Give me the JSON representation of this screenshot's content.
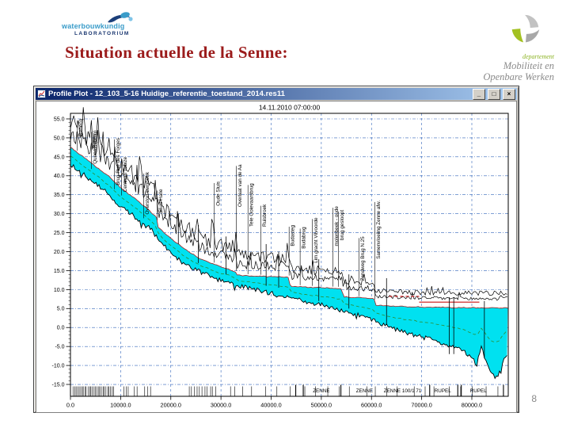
{
  "slide": {
    "title": "Situation actuelle de la Senne:",
    "page_number": "8",
    "logo_left": {
      "line1": "waterbouwkundig",
      "line2": "LABORATORIUM"
    },
    "logo_right": {
      "line1": "departement",
      "line2": "Mobiliteit en",
      "line3": "Openbare Werken"
    },
    "colors": {
      "title": "#9b1b1b",
      "accent_green": "#a3c122"
    }
  },
  "window": {
    "title": "Profile Plot - 12_103_5-16 Huidige_referentie_toestand_2014.res11",
    "controls": {
      "minimize": "_",
      "maximize": "□",
      "close": "×"
    }
  },
  "chart_data": {
    "type": "area",
    "title": "14.11.2010 07:00:00",
    "xlabel": "",
    "ylabel": "",
    "xlim": [
      0,
      87200
    ],
    "ylim": [
      -18,
      56.5
    ],
    "x_ticks": [
      0,
      10000,
      20000,
      30000,
      40000,
      50000,
      60000,
      70000,
      80000
    ],
    "y_ticks": [
      55,
      50,
      45,
      40,
      35,
      30,
      25,
      20,
      15,
      10,
      5,
      0,
      -5,
      -10,
      -15
    ],
    "grid": "dashed-blue",
    "legend": "none",
    "colors": {
      "water": "#00e1f0",
      "bed": "#000000",
      "surface_edge": "#aa2222",
      "reference": "#2e8b2e",
      "max_level": "#cc1111",
      "grid": "#3366bb"
    },
    "series": [
      {
        "name": "water-surface",
        "points": [
          [
            0,
            47.5
          ],
          [
            2000,
            45.5
          ],
          [
            4000,
            43.5
          ],
          [
            6000,
            41.5
          ],
          [
            8000,
            39.5
          ],
          [
            10000,
            36.8
          ],
          [
            12000,
            34.8
          ],
          [
            14000,
            32.8
          ],
          [
            16000,
            30.5
          ],
          [
            17200,
            29.0
          ],
          [
            17400,
            26.5
          ],
          [
            20000,
            23.5
          ],
          [
            23000,
            20.5
          ],
          [
            26000,
            18.0
          ],
          [
            29000,
            16.5
          ],
          [
            32000,
            15.2
          ],
          [
            33000,
            14.6
          ],
          [
            33300,
            13.8
          ],
          [
            36000,
            13.6
          ],
          [
            40000,
            13.4
          ],
          [
            43500,
            13.3
          ],
          [
            43800,
            10.9
          ],
          [
            48000,
            10.6
          ],
          [
            52000,
            10.4
          ],
          [
            54100,
            10.3
          ],
          [
            54400,
            8.1
          ],
          [
            57000,
            7.9
          ],
          [
            60500,
            7.6
          ],
          [
            60800,
            5.9
          ],
          [
            65000,
            5.6
          ],
          [
            70000,
            5.4
          ],
          [
            75000,
            5.3
          ],
          [
            80000,
            5.2
          ],
          [
            87200,
            5.2
          ]
        ]
      },
      {
        "name": "bed-level",
        "points": [
          [
            0,
            43.0
          ],
          [
            2000,
            41.0
          ],
          [
            4000,
            39.0
          ],
          [
            6000,
            37.0
          ],
          [
            8000,
            34.5
          ],
          [
            10000,
            32.0
          ],
          [
            12000,
            30.0
          ],
          [
            14000,
            28.0
          ],
          [
            16000,
            26.0
          ],
          [
            17400,
            23.5
          ],
          [
            20000,
            19.5
          ],
          [
            23000,
            16.5
          ],
          [
            26000,
            14.5
          ],
          [
            29000,
            13.0
          ],
          [
            32000,
            12.0
          ],
          [
            33300,
            11.0
          ],
          [
            36000,
            10.3
          ],
          [
            40000,
            9.0
          ],
          [
            43800,
            8.0
          ],
          [
            46000,
            7.0
          ],
          [
            50000,
            6.0
          ],
          [
            54400,
            4.5
          ],
          [
            58000,
            3.0
          ],
          [
            62000,
            1.0
          ],
          [
            66000,
            -1.0
          ],
          [
            70000,
            -2.5
          ],
          [
            74000,
            -4.0
          ],
          [
            78000,
            -6.0
          ],
          [
            80000,
            -8.0
          ],
          [
            81000,
            -10.0
          ],
          [
            81800,
            -5.0
          ],
          [
            82600,
            -8.0
          ],
          [
            83600,
            -12.0
          ],
          [
            84800,
            -13.0
          ],
          [
            85800,
            -11.5
          ],
          [
            86400,
            -8.0
          ],
          [
            87200,
            -7.0
          ]
        ]
      },
      {
        "name": "bank-near-offset",
        "points": [
          [
            0,
            3.5
          ],
          [
            20000,
            3.5
          ],
          [
            40000,
            2.8
          ],
          [
            60000,
            2.4
          ],
          [
            87200,
            2.4
          ]
        ]
      },
      {
        "name": "bank-far-offset",
        "points": [
          [
            0,
            6.5
          ],
          [
            20000,
            6.0
          ],
          [
            44000,
            4.8
          ],
          [
            62000,
            3.8
          ],
          [
            87200,
            3.8
          ]
        ]
      },
      {
        "name": "jitter-amplitude",
        "points": [
          [
            0,
            2.2
          ],
          [
            20000,
            1.6
          ],
          [
            44000,
            1.1
          ],
          [
            62000,
            0.5
          ],
          [
            87200,
            0.5
          ]
        ]
      },
      {
        "name": "reference-level-green",
        "derive": "midline of water-surface and bed-level"
      }
    ],
    "red_segments": [
      {
        "from": 63500,
        "to": 69500,
        "level": 8.2,
        "dashed": true
      },
      {
        "from": 69500,
        "to": 81500,
        "level": 6.7,
        "dashed": false
      }
    ],
    "structures": [
      {
        "m": 1300,
        "label": "Rebecq",
        "top": 55
      },
      {
        "m": 4100,
        "label": "Quenast (brug)",
        "top": 52
      },
      {
        "m": 8700,
        "label": "Brug Rue des Forges",
        "top": 50
      },
      {
        "m": 10100,
        "label": "Centrum Tubize",
        "top": 45
      },
      {
        "m": 14500,
        "label": "Overstort Lembeek",
        "top": 41
      },
      {
        "m": 17200,
        "label": "Sluis Halle",
        "top": 36.5
      },
      {
        "m": 28600,
        "label": "Oude Sluis",
        "top": 38.5
      },
      {
        "m": 33000,
        "label": "Overlaat van de Aa",
        "top": 43
      },
      {
        "m": 35300,
        "label": "Tele Ooievaarsbrug",
        "top": 38
      },
      {
        "m": 37900,
        "label": "Ruisbroek",
        "top": 32.5
      },
      {
        "m": 43500,
        "label": "Budasteg",
        "top": 27
      },
      {
        "m": 45700,
        "label": "Budabrug",
        "top": 26.5
      },
      {
        "m": 48100,
        "label": "Lim.gracht Vilvoorde",
        "top": 29
      },
      {
        "m": 52200,
        "label": "molenbeek - oude",
        "top": 32
      },
      {
        "m": 53300,
        "label": "brug gesloopt",
        "top": 31
      },
      {
        "m": 57400,
        "label": "Zandweg Brug N.25",
        "top": 24
      },
      {
        "m": 60600,
        "label": "Samenvloeiing Zenne afw.",
        "top": 33.5
      }
    ],
    "spikes": [
      {
        "m": 21500,
        "top": 30,
        "bot": 22
      },
      {
        "m": 25500,
        "top": 27,
        "bot": 17
      },
      {
        "m": 31000,
        "top": 24,
        "bot": 14
      },
      {
        "m": 39000,
        "top": 22,
        "bot": 11
      },
      {
        "m": 41500,
        "top": 20,
        "bot": 10.5
      },
      {
        "m": 49500,
        "top": 18,
        "bot": 7
      },
      {
        "m": 55500,
        "top": 14,
        "bot": 5
      },
      {
        "m": 63000,
        "top": 13,
        "bot": 1
      },
      {
        "m": 75500,
        "top": 8,
        "bot": -7
      },
      {
        "m": 76400,
        "top": 8,
        "bot": -7
      },
      {
        "m": 82500,
        "top": 7,
        "bot": -8
      }
    ],
    "cross_section_tick_clusters": [
      {
        "from": 500,
        "to": 8800,
        "step": 300
      },
      {
        "from": 10700,
        "to": 11500,
        "step": 400
      },
      {
        "from": 12800,
        "to": 13200,
        "step": 400
      },
      {
        "from": 14700,
        "to": 15900,
        "step": 600
      },
      {
        "from": 23700,
        "to": 28900,
        "step": 520
      },
      {
        "from": 31700,
        "to": 34400,
        "step": 1350
      },
      {
        "from": 36300,
        "to": 44000,
        "step": 2500
      },
      {
        "from": 46500,
        "to": 86500,
        "step": 2400
      }
    ],
    "reaches": {
      "separators": [
        44900,
        46400,
        53900,
        71600,
        77200,
        77900,
        86300
      ],
      "labels": [
        {
          "m": 50000,
          "text": "ZENNE"
        },
        {
          "m": 58600,
          "text": "ZENNE"
        },
        {
          "m": 66200,
          "text": "ZENNE 100/1 71"
        },
        {
          "m": 74200,
          "text": "RUPEL"
        },
        {
          "m": 81300,
          "text": "RUPEL"
        }
      ]
    }
  }
}
